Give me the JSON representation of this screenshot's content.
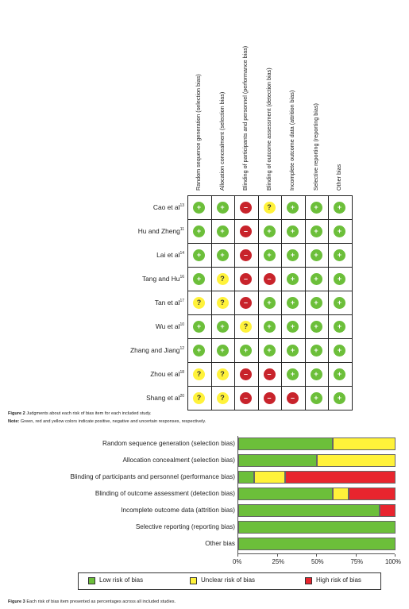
{
  "colors": {
    "green": "#6cbf3a",
    "yellow": "#fff23a",
    "red": "#c8232b"
  },
  "columns": [
    "Random sequence generation (selection bias)",
    "Allocation concealment (selection bias)",
    "Blinding of participants and personnel (performance bias)",
    "Blinding of outcome assessment (detection bias)",
    "Incomplete outcome data (attrition bias)",
    "Selective reporting (reporting bias)",
    "Other bias"
  ],
  "studies": [
    {
      "name": "Cao et al",
      "ref": "13",
      "judgments": [
        "+",
        "+",
        "-",
        "?",
        "+",
        "+",
        "+"
      ]
    },
    {
      "name": "Hu and Zheng",
      "ref": "11",
      "judgments": [
        "+",
        "+",
        "-",
        "+",
        "+",
        "+",
        "+"
      ]
    },
    {
      "name": "Lai et al",
      "ref": "14",
      "judgments": [
        "+",
        "+",
        "-",
        "+",
        "+",
        "+",
        "+"
      ]
    },
    {
      "name": "Tang and Hu",
      "ref": "16",
      "judgments": [
        "+",
        "?",
        "-",
        "-",
        "+",
        "+",
        "+"
      ]
    },
    {
      "name": "Tan et al",
      "ref": "17",
      "judgments": [
        "?",
        "?",
        "-",
        "+",
        "+",
        "+",
        "+"
      ]
    },
    {
      "name": "Wu et al",
      "ref": "10",
      "judgments": [
        "+",
        "+",
        "?",
        "+",
        "+",
        "+",
        "+"
      ]
    },
    {
      "name": "Zhang and Jiang",
      "ref": "12",
      "judgments": [
        "+",
        "+",
        "+",
        "+",
        "+",
        "+",
        "+"
      ]
    },
    {
      "name": "Zhou et al",
      "ref": "18",
      "judgments": [
        "?",
        "?",
        "-",
        "-",
        "+",
        "+",
        "+"
      ]
    },
    {
      "name": "Shang et al",
      "ref": "20",
      "judgments": [
        "?",
        "?",
        "-",
        "-",
        "-",
        "+",
        "+"
      ]
    }
  ],
  "figure2": {
    "title_bold": "Figure 2",
    "title_rest": " Judgments about each risk of bias item for each included study.",
    "note_bold": "Note:",
    "note_rest": " Green, red and yellow colors indicate positive, negative and uncertain responses, respectively."
  },
  "chart_data": {
    "type": "bar",
    "orientation": "horizontal-stacked",
    "categories": [
      "Random sequence generation (selection bias)",
      "Allocation concealment (selection bias)",
      "Blinding of participants and personnel (performance bias)",
      "Blinding of outcome assessment (detection bias)",
      "Incomplete outcome data (attrition bias)",
      "Selective reporting (reporting bias)",
      "Other bias"
    ],
    "series": [
      {
        "name": "Low risk of bias",
        "color": "#6cbf3a",
        "values": [
          60,
          50,
          10,
          60,
          90,
          100,
          100
        ]
      },
      {
        "name": "Unclear risk of bias",
        "color": "#fff23a",
        "values": [
          40,
          50,
          20,
          10,
          0,
          0,
          0
        ]
      },
      {
        "name": "High risk of bias",
        "color": "#e8252e",
        "values": [
          0,
          0,
          70,
          30,
          10,
          0,
          0
        ]
      }
    ],
    "xticks": [
      "0%",
      "25%",
      "50%",
      "75%",
      "100%"
    ],
    "xlim": [
      0,
      100
    ],
    "legend": "bottom"
  },
  "figure3": {
    "title_bold": "Figure 3",
    "title_rest": " Each risk of bias item presented as percentages across all included studies."
  }
}
